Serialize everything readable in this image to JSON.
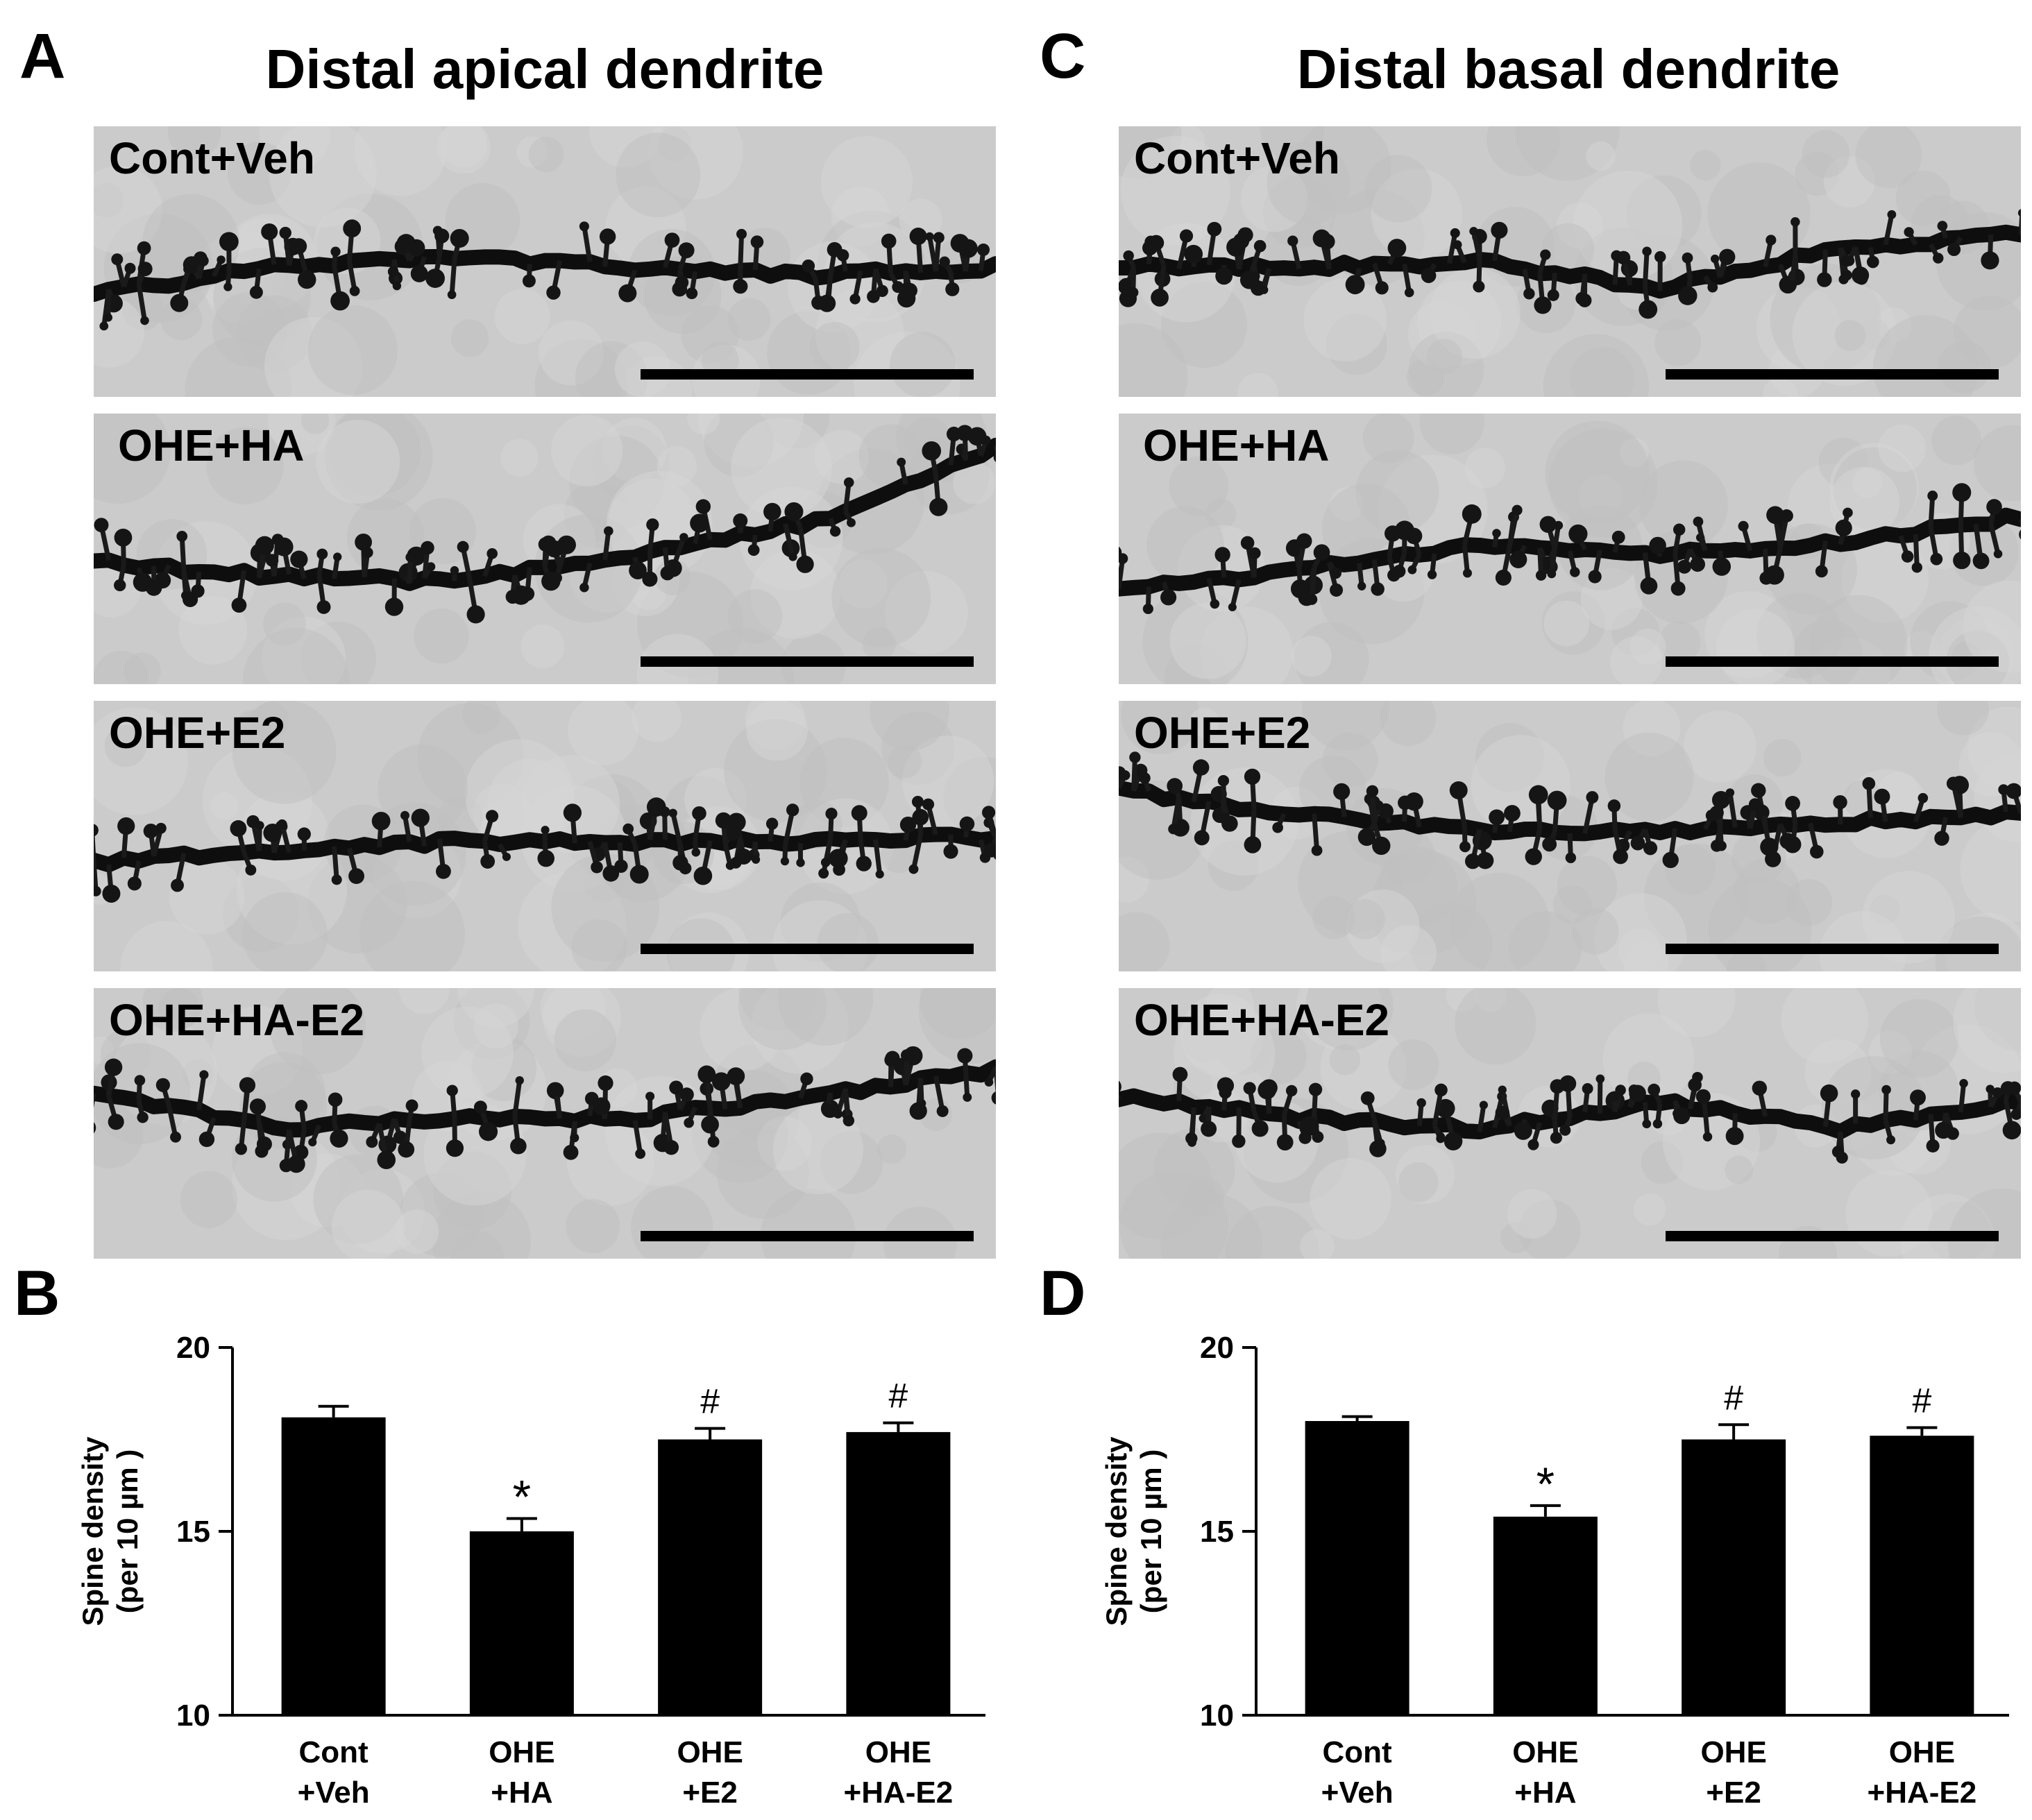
{
  "colors": {
    "background": "#ffffff",
    "bar": "#000000",
    "micrograph_bg": "#cbcbcb",
    "dendrite": "#0e0e0e"
  },
  "panel_letters": {
    "a": "A",
    "b": "B",
    "c": "C",
    "d": "D"
  },
  "columns": {
    "apical": {
      "title": "Distal apical dendrite",
      "panels": [
        {
          "label": "Cont+Veh"
        },
        {
          "label": "OHE+HA"
        },
        {
          "label": "OHE+E2"
        },
        {
          "label": "OHE+HA-E2"
        }
      ]
    },
    "basal": {
      "title": "Distal basal dendrite",
      "panels": [
        {
          "label": "Cont+Veh"
        },
        {
          "label": "OHE+HA"
        },
        {
          "label": "OHE+E2"
        },
        {
          "label": "OHE+HA-E2"
        }
      ]
    }
  },
  "chart_data": [
    {
      "type": "bar",
      "panel": "B",
      "ylabel": "Spine density",
      "ylabel_unit": "(per 10 µm )",
      "ylim": [
        10,
        20
      ],
      "yticks": [
        "10",
        "15",
        "20"
      ],
      "categories": [
        [
          "Cont",
          "+Veh"
        ],
        [
          "OHE",
          "+HA"
        ],
        [
          "OHE",
          "+E2"
        ],
        [
          "OHE",
          "+HA-E2"
        ]
      ],
      "values": [
        18.1,
        15.0,
        17.5,
        17.7
      ],
      "errors": [
        0.3,
        0.35,
        0.3,
        0.25
      ],
      "annotations": [
        "",
        "*",
        "#",
        "#"
      ]
    },
    {
      "type": "bar",
      "panel": "D",
      "ylabel": "Spine density",
      "ylabel_unit": "(per 10 µm )",
      "ylim": [
        10,
        20
      ],
      "yticks": [
        "10",
        "15",
        "20"
      ],
      "categories": [
        [
          "Cont",
          "+Veh"
        ],
        [
          "OHE",
          "+HA"
        ],
        [
          "OHE",
          "+E2"
        ],
        [
          "OHE",
          "+HA-E2"
        ]
      ],
      "values": [
        18.0,
        15.4,
        17.5,
        17.6
      ],
      "errors": [
        0.12,
        0.3,
        0.4,
        0.22
      ],
      "annotations": [
        "",
        "*",
        "#",
        "#"
      ]
    }
  ]
}
